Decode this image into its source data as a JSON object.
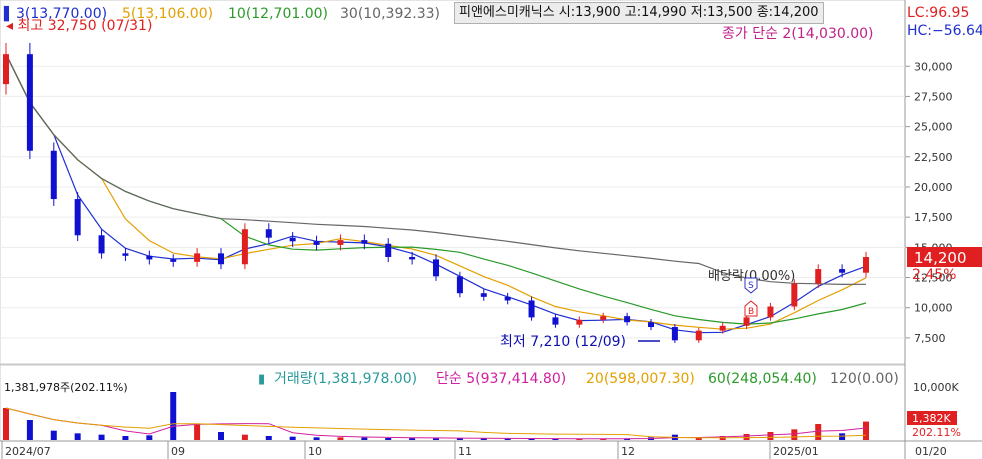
{
  "header": {
    "ma_legend": [
      {
        "label": "3(13,770.00)",
        "color": "#1f2fd0"
      },
      {
        "label": "5(13,106.00)",
        "color": "#e3a000"
      },
      {
        "label": "10(12,701.00)",
        "color": "#2a9a2a"
      },
      {
        "label": "30(10,392.33)",
        "color": "#666666"
      }
    ],
    "stock_info": "피앤에스미캐닉스 시:13,900 고:14,990 저:13,500 종:14,200",
    "sub_legend": "종가 단순 2(14,030.00)",
    "lc": "LC:96.95",
    "hc": "HC:−56.64"
  },
  "annotations": {
    "high": "최고 32,750 (07/31)",
    "low": "최저 7,210 (12/09)",
    "dividend": "배당락(0.00%)",
    "marker_s": "S",
    "marker_b": "B"
  },
  "price_axis": {
    "ticks": [
      "30,000",
      "27,500",
      "25,000",
      "22,500",
      "20,000",
      "17,500",
      "15,000",
      "12,500",
      "10,000",
      "7,500"
    ],
    "current_price": "14,200",
    "change_pct": "2.45%"
  },
  "volume_panel": {
    "legend": [
      {
        "label": "거래량(1,381,978.00)",
        "color": "#2a9a9a"
      },
      {
        "label": "단순 5(937,414.80)",
        "color": "#d020a0"
      },
      {
        "label": "20(598,007.30)",
        "color": "#e3a000"
      },
      {
        "label": "60(248,054.40)",
        "color": "#2a9a2a"
      },
      {
        "label": "120(0.00)",
        "color": "#666666"
      }
    ],
    "top_label": "1,381,978주(202.11%)",
    "axis_tick": "10,000K",
    "current_volume": "1,382K",
    "volume_pct": "202.11%"
  },
  "x_axis": {
    "labels": [
      "2024/07",
      "09",
      "10",
      "11",
      "12",
      "2025/01",
      "01/20"
    ]
  },
  "colors": {
    "up": "#e02020",
    "down": "#1010d0",
    "ma3": "#1f2fd0",
    "ma5": "#e3a000",
    "ma10": "#2a9a2a",
    "ma30": "#666666"
  },
  "chart_data": {
    "type": "candlestick",
    "series": [
      {
        "name": "Price",
        "close_estimates": [
          31000,
          23000,
          19000,
          16000,
          14500,
          14300,
          14000,
          13800,
          14500,
          13600,
          16500,
          15800,
          15500,
          15200,
          15600,
          15300,
          14200,
          14000,
          12600,
          11200,
          10900,
          10600,
          9200,
          8600,
          9000,
          9300,
          8800,
          8400,
          7300,
          8100,
          8500,
          9200,
          10100,
          12000,
          13200,
          12900,
          14200
        ]
      },
      {
        "name": "Volume",
        "values_k_estimates": [
          2400,
          1500,
          700,
          500,
          400,
          300,
          350,
          3600,
          1200,
          600,
          400,
          300,
          250,
          200,
          200,
          180,
          150,
          140,
          130,
          120,
          110,
          100,
          100,
          90,
          90,
          80,
          120,
          200,
          400,
          150,
          300,
          450,
          600,
          800,
          1200,
          500,
          1382
        ]
      }
    ],
    "y_range": [
      6000,
      33500
    ],
    "price_high": 32750,
    "price_low": 7210,
    "last_close": 14200
  }
}
